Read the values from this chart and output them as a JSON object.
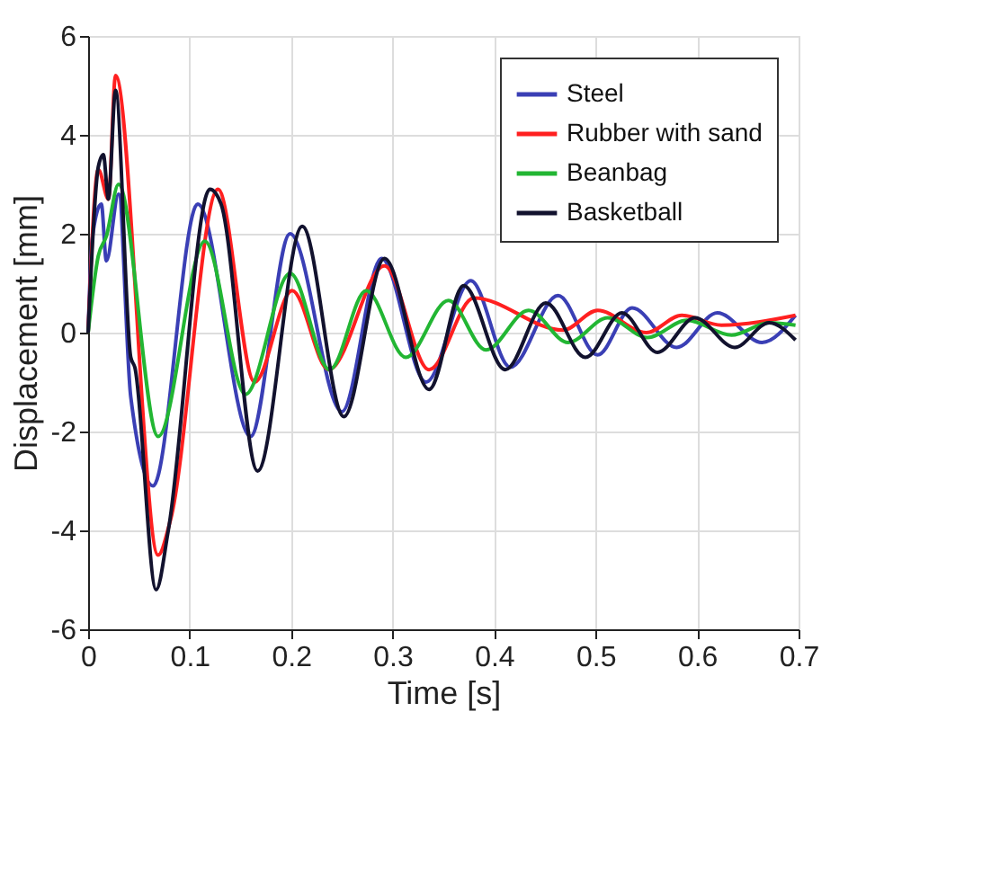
{
  "chart_data": {
    "type": "line",
    "xlabel": "Time [s]",
    "ylabel": "Displacement [mm]",
    "xlim": [
      0,
      0.7
    ],
    "ylim": [
      -6,
      6
    ],
    "xticks": [
      0,
      0.1,
      0.2,
      0.3,
      0.4,
      0.5,
      0.6,
      0.7
    ],
    "yticks": [
      -6,
      -4,
      -2,
      0,
      2,
      4,
      6
    ],
    "grid": true,
    "legend": "top right",
    "marker": "none",
    "line_style": "solid",
    "series": [
      {
        "name": "Steel",
        "color": "#3a3fb5",
        "x": [
          0,
          0.004,
          0.013,
          0.018,
          0.03,
          0.042,
          0.064,
          0.108,
          0.16,
          0.199,
          0.25,
          0.289,
          0.333,
          0.377,
          0.416,
          0.463,
          0.502,
          0.536,
          0.58,
          0.62,
          0.664,
          0.697
        ],
        "values": [
          0,
          1.9,
          2.6,
          1.45,
          2.8,
          -1.3,
          -3.1,
          2.6,
          -2.1,
          2.0,
          -1.6,
          1.5,
          -1.0,
          1.05,
          -0.7,
          0.75,
          -0.45,
          0.5,
          -0.3,
          0.4,
          -0.2,
          0.35
        ]
      },
      {
        "name": "Rubber with sand",
        "color": "#ff2020",
        "x": [
          0,
          0.01,
          0.02,
          0.027,
          0.069,
          0.081,
          0.128,
          0.164,
          0.201,
          0.237,
          0.292,
          0.336,
          0.38,
          0.468,
          0.502,
          0.55,
          0.585,
          0.624,
          0.697
        ],
        "values": [
          0,
          3.3,
          2.7,
          5.2,
          -4.5,
          -3.8,
          2.9,
          -1.0,
          0.85,
          -0.75,
          1.35,
          -0.75,
          0.7,
          0.05,
          0.45,
          0.0,
          0.35,
          0.15,
          0.35
        ]
      },
      {
        "name": "Beanbag",
        "color": "#22b633",
        "x": [
          0,
          0.01,
          0.018,
          0.03,
          0.069,
          0.115,
          0.155,
          0.199,
          0.238,
          0.274,
          0.313,
          0.355,
          0.392,
          0.434,
          0.473,
          0.512,
          0.551,
          0.59,
          0.634,
          0.671,
          0.697
        ],
        "values": [
          0,
          1.55,
          1.95,
          3.0,
          -2.1,
          1.85,
          -1.25,
          1.2,
          -0.75,
          0.85,
          -0.5,
          0.65,
          -0.35,
          0.45,
          -0.2,
          0.3,
          -0.1,
          0.25,
          -0.05,
          0.2,
          0.15
        ]
      },
      {
        "name": "Basketball",
        "color": "#12122e",
        "x": [
          0,
          0.01,
          0.015,
          0.02,
          0.027,
          0.042,
          0.046,
          0.067,
          0.079,
          0.12,
          0.131,
          0.167,
          0.211,
          0.252,
          0.292,
          0.336,
          0.37,
          0.411,
          0.451,
          0.49,
          0.526,
          0.561,
          0.598,
          0.637,
          0.671,
          0.697
        ],
        "values": [
          0,
          3.35,
          3.6,
          2.7,
          4.9,
          -0.5,
          -0.7,
          -5.2,
          -4.0,
          2.9,
          2.6,
          -2.8,
          2.15,
          -1.7,
          1.5,
          -1.15,
          0.95,
          -0.75,
          0.6,
          -0.5,
          0.4,
          -0.4,
          0.3,
          -0.3,
          0.2,
          -0.15
        ]
      }
    ]
  }
}
